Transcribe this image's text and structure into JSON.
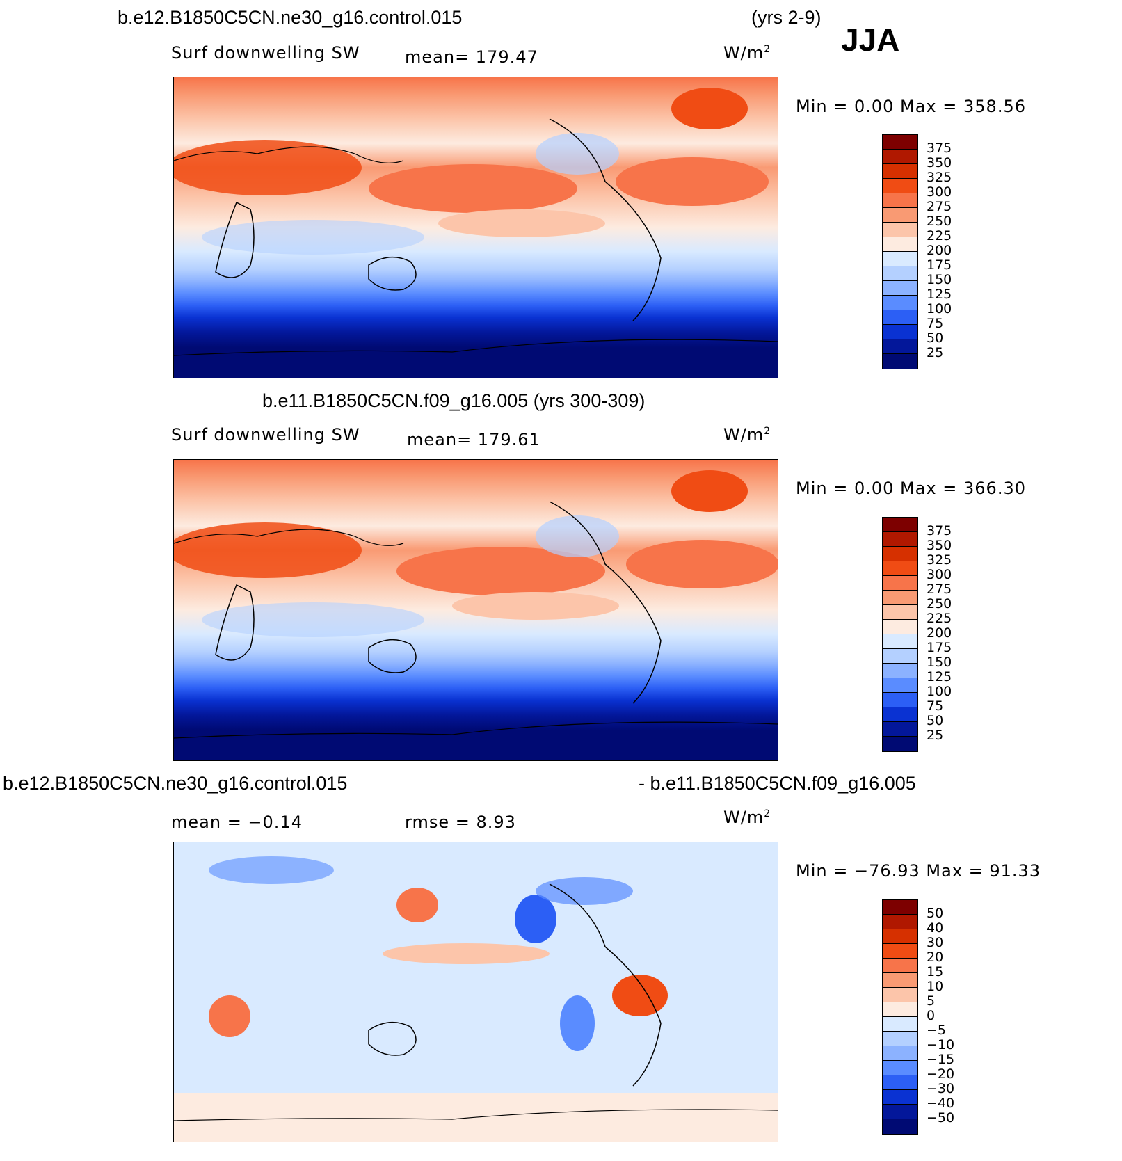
{
  "header": {
    "case1": "b.e12.B1850C5CN.ne30_g16.control.015",
    "years1": "(yrs 2-9)",
    "season": "JJA",
    "case2": "b.e11.B1850C5CN.f09_g16.005 (yrs 300-309)",
    "diff_left": "b.e12.B1850C5CN.ne30_g16.control.015",
    "diff_right": "- b.e11.B1850C5CN.f09_g16.005"
  },
  "panels": [
    {
      "var_label": "Surf  downwelling  SW",
      "stat": "mean=  179.47",
      "units": "W/m",
      "units_sup": "2",
      "minmax": "Min  =     0.00  Max  =  358.56",
      "levels": [
        "375",
        "350",
        "325",
        "300",
        "275",
        "250",
        "225",
        "200",
        "175",
        "150",
        "125",
        "100",
        "75",
        "50",
        "25"
      ]
    },
    {
      "var_label": "Surf  downwelling  SW",
      "stat": "mean=  179.61",
      "units": "W/m",
      "units_sup": "2",
      "minmax": "Min  =     0.00  Max  =  366.30",
      "levels": [
        "375",
        "350",
        "325",
        "300",
        "275",
        "250",
        "225",
        "200",
        "175",
        "150",
        "125",
        "100",
        "75",
        "50",
        "25"
      ]
    },
    {
      "var_label": "mean  =   −0.14",
      "stat": "rmse  =    8.93",
      "units": "W/m",
      "units_sup": "2",
      "minmax": "Min  =  −76.93  Max  =   91.33",
      "levels": [
        "50",
        "40",
        "30",
        "20",
        "15",
        "10",
        "5",
        "0",
        "−5",
        "−10",
        "−15",
        "−20",
        "−30",
        "−40",
        "−50"
      ]
    }
  ],
  "colors": {
    "scale": [
      "#7d0000",
      "#b01800",
      "#d63000",
      "#f04c14",
      "#f7744a",
      "#f99a73",
      "#fcc5aa",
      "#fdebe0",
      "#d9eaff",
      "#b4d0ff",
      "#8cb2ff",
      "#5a8cff",
      "#2c5ff5",
      "#0a32d2",
      "#03179a",
      "#000a73"
    ]
  }
}
